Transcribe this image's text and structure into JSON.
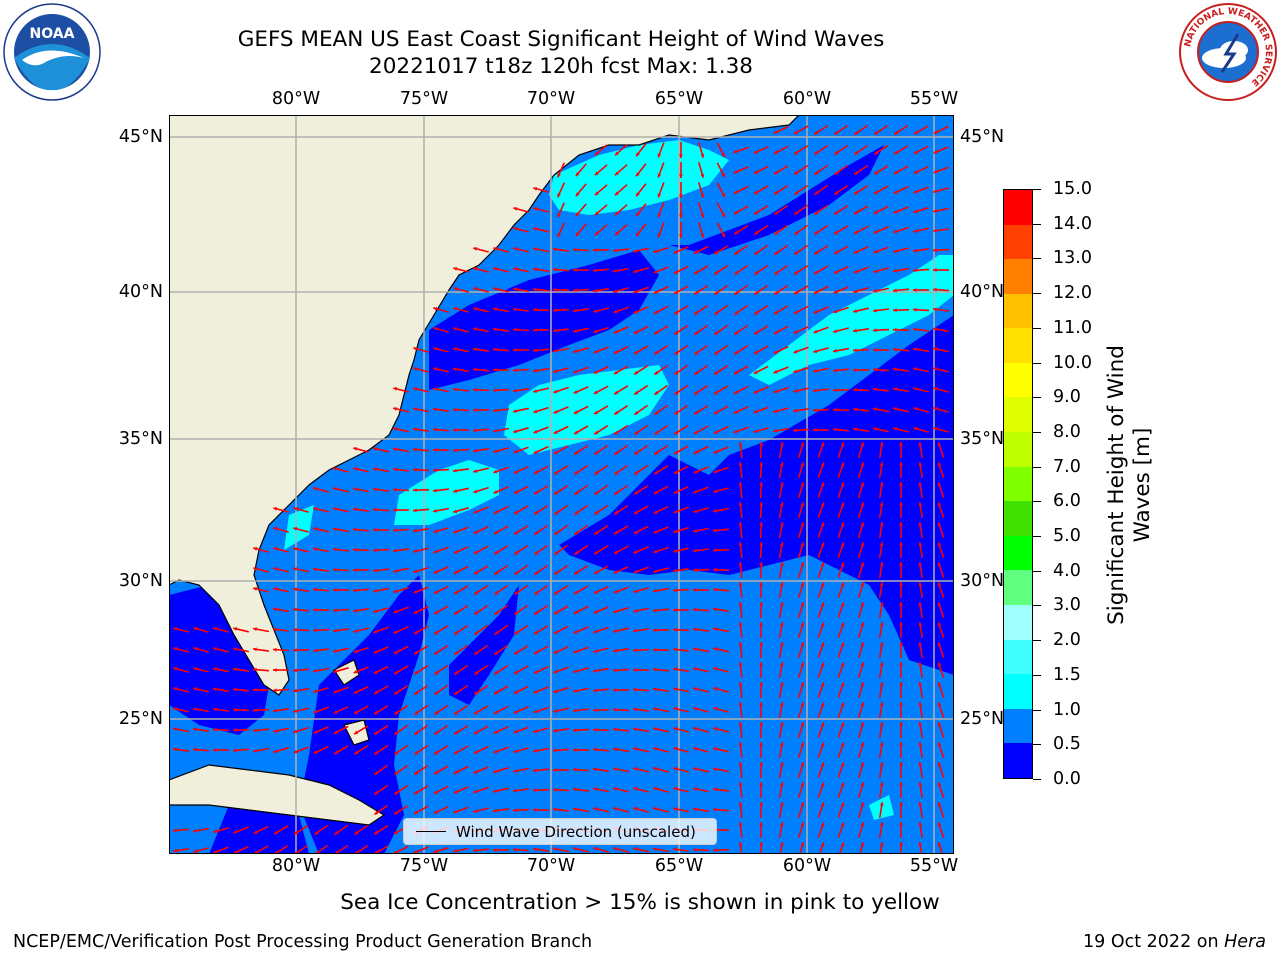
{
  "title_line1": "GEFS MEAN US East Coast Significant Height of Wind Waves",
  "title_line2": "20221017 t18z 120h fcst   Max: 1.38",
  "longitude_labels": [
    "80°W",
    "75°W",
    "70°W",
    "65°W",
    "60°W",
    "55°W"
  ],
  "latitude_labels": [
    "45°N",
    "40°N",
    "35°N",
    "30°N",
    "25°N"
  ],
  "legend_label": "Wind Wave Direction (unscaled)",
  "colorbar": {
    "title_line1": "Significant Height of Wind",
    "title_line2": "Waves [m]",
    "ticks": [
      "0.0",
      "0.5",
      "1.0",
      "1.5",
      "2.0",
      "3.0",
      "4.0",
      "5.0",
      "6.0",
      "7.0",
      "8.0",
      "9.0",
      "10.0",
      "11.0",
      "12.0",
      "13.0",
      "14.0",
      "15.0"
    ],
    "colors": [
      "#0000ff",
      "#0080ff",
      "#00ffff",
      "#40ffff",
      "#a0ffff",
      "#60ff80",
      "#00ff00",
      "#40e000",
      "#80ff00",
      "#c0ff00",
      "#e0ff00",
      "#ffff00",
      "#ffe000",
      "#ffc000",
      "#ff8000",
      "#ff4000",
      "#ff0000"
    ]
  },
  "footnote": "Sea Ice Concentration > 15% is shown in pink to yellow",
  "credit": "NCEP/EMC/Verification Post Processing Product Generation Branch",
  "date_text": "19 Oct 2022 on ",
  "date_machine": "Hera",
  "logos": {
    "left": "NOAA",
    "right": "NATIONAL WEATHER SERVICE"
  }
}
